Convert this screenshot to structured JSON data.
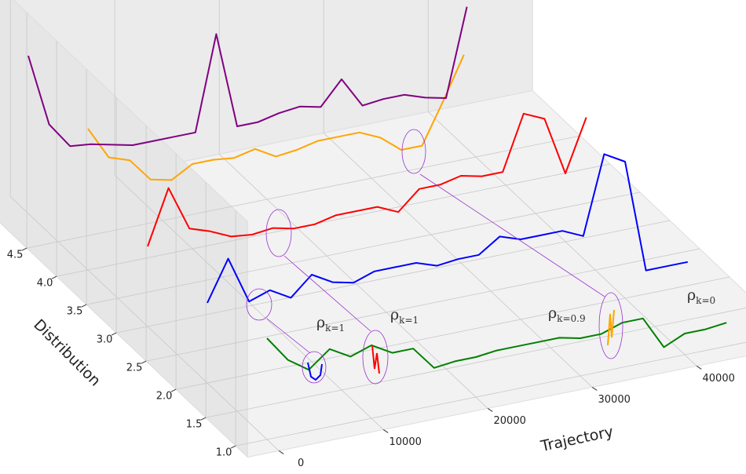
{
  "chart_data": {
    "type": "line3d",
    "xlabel": "Trajectory",
    "ylabel": "Distribution",
    "xlim": [
      -3000,
      50000
    ],
    "ylim": [
      0.8,
      5.3
    ],
    "zlim": [
      0,
      1
    ],
    "xticks": [
      0,
      10000,
      20000,
      30000,
      40000
    ],
    "yticks": [
      {
        "value": 1,
        "label": "1.0"
      },
      1.5,
      {
        "value": 2,
        "label": "2.0"
      },
      2.5,
      {
        "value": 3,
        "label": "3.0"
      },
      3.5,
      {
        "value": 4,
        "label": "4.0"
      },
      4.5
    ],
    "grid": true,
    "x": [
      0,
      2000,
      4000,
      6000,
      8000,
      10000,
      12000,
      14000,
      16000,
      18000,
      20000,
      22000,
      24000,
      26000,
      28000,
      30000,
      32000,
      34000,
      36000,
      38000,
      40000,
      42000,
      44000,
      46000
    ],
    "series": [
      {
        "color": "#008000",
        "depth": 1,
        "values": [
          0.43,
          0.32,
          0.26,
          0.33,
          0.28,
          0.31,
          0.26,
          0.26,
          0.16,
          0.17,
          0.17,
          0.18,
          0.18,
          0.18,
          0.18,
          0.16,
          0.16,
          0.19,
          0.19,
          0.05,
          0.09,
          0.09,
          0.1,
          null
        ]
      },
      {
        "color": "#0000ff",
        "depth": 2,
        "values": [
          0.34,
          0.51,
          0.31,
          0.34,
          0.29,
          0.37,
          0.32,
          0.3,
          0.33,
          0.33,
          0.33,
          0.3,
          0.31,
          0.31,
          0.37,
          0.34,
          0.34,
          0.34,
          0.3,
          0.63,
          0.58,
          0.1,
          0.1,
          0.1
        ]
      },
      {
        "color": "#ff0000",
        "depth": 3,
        "values": [
          0.34,
          0.57,
          0.38,
          0.35,
          0.31,
          0.3,
          0.31,
          0.29,
          0.29,
          0.31,
          0.31,
          0.31,
          0.27,
          0.35,
          0.35,
          0.37,
          0.35,
          0.35,
          0.58,
          0.54,
          0.29,
          0.51,
          null,
          null
        ]
      },
      {
        "color": "#ffa500",
        "depth": 4,
        "values": [
          0.6,
          0.46,
          0.43,
          0.33,
          0.31,
          0.36,
          0.36,
          0.35,
          0.37,
          0.32,
          0.33,
          0.35,
          0.35,
          0.35,
          0.31,
          0.24,
          0.24,
          0.41,
          0.59,
          null,
          null,
          null,
          null,
          null
        ]
      },
      {
        "color": "#800080",
        "depth": 5,
        "values": [
          0.67,
          0.36,
          0.25,
          0.24,
          0.22,
          0.2,
          0.2,
          0.2,
          0.2,
          0.6,
          0.19,
          0.19,
          0.21,
          0.22,
          0.2,
          0.3,
          0.17,
          0.18,
          0.18,
          0.15,
          0.13,
          0.5,
          null,
          null
        ]
      }
    ],
    "annotations": [
      {
        "text": "ρ",
        "sub": "k=1"
      },
      {
        "text": "ρ",
        "sub": "k=1"
      },
      {
        "text": "ρ",
        "sub": "k=0.9"
      },
      {
        "text": "ρ",
        "sub": "k=0"
      }
    ]
  }
}
